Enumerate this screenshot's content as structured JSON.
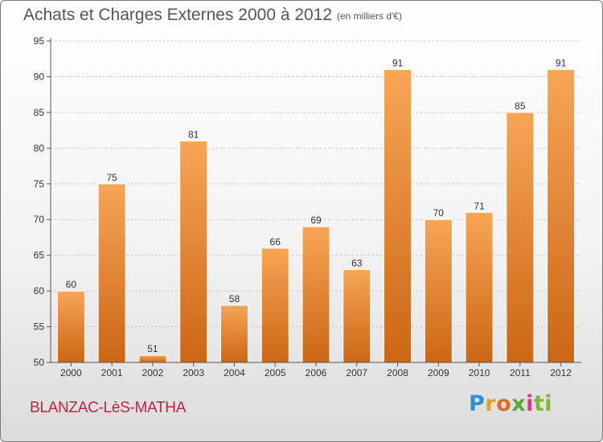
{
  "title": "Achats et Charges Externes 2000 à 2012",
  "unit_label": "(en milliers d'€)",
  "commune": "BLANZAC-LèS-MATHA",
  "logo_letters": [
    "P",
    "r",
    "o",
    "x",
    "i",
    "ti"
  ],
  "colors": {
    "bar_light": "#f7a556",
    "bar_dark": "#cc6614",
    "axis": "#555555",
    "grid": "#bdbdbd",
    "commune_text": "#c0234a"
  },
  "chart_data": {
    "type": "bar",
    "title": "Achats et Charges Externes 2000 à 2012",
    "subtitle": "(en milliers d'€)",
    "xlabel": "",
    "ylabel": "",
    "categories": [
      "2000",
      "2001",
      "2002",
      "2003",
      "2004",
      "2005",
      "2006",
      "2007",
      "2008",
      "2009",
      "2010",
      "2011",
      "2012"
    ],
    "values": [
      60,
      75,
      51,
      81,
      58,
      66,
      69,
      63,
      91,
      70,
      71,
      85,
      91
    ],
    "ylim": [
      50,
      95
    ],
    "yticks": [
      50,
      55,
      60,
      65,
      70,
      75,
      80,
      85,
      90,
      95
    ],
    "grid": "horizontal",
    "legend": "none"
  }
}
